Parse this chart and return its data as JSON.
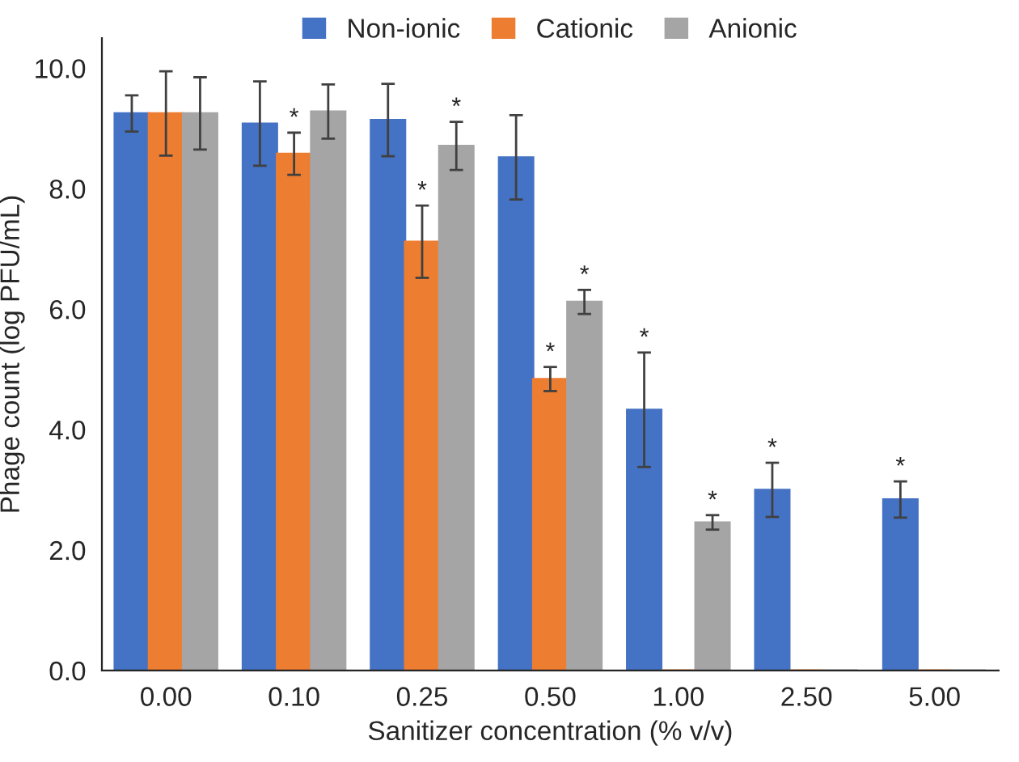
{
  "chart_data": {
    "type": "bar",
    "xlabel": "Sanitizer concentration (% v/v)",
    "ylabel": "Phage count (log PFU/mL)",
    "categories": [
      "0.00",
      "0.10",
      "0.25",
      "0.50",
      "1.00",
      "2.50",
      "5.00"
    ],
    "series": [
      {
        "name": "Non-ionic",
        "color": "#4472c4",
        "values": [
          9.25,
          9.08,
          9.14,
          8.52,
          4.33,
          3.0,
          2.84
        ],
        "errors": [
          0.3,
          0.7,
          0.6,
          0.7,
          0.95,
          0.45,
          0.3
        ],
        "value_labels": [
          null,
          null,
          null,
          null,
          "*",
          "*",
          "*"
        ]
      },
      {
        "name": "Cationic",
        "color": "#ed7d31",
        "values": [
          9.25,
          8.58,
          7.12,
          4.84,
          0,
          0,
          0
        ],
        "errors": [
          0.7,
          0.35,
          0.6,
          0.2,
          null,
          null,
          null
        ],
        "value_labels": [
          null,
          "*",
          "*",
          "*",
          null,
          null,
          null
        ]
      },
      {
        "name": "Anionic",
        "color": "#a5a5a5",
        "values": [
          9.25,
          9.28,
          8.71,
          6.12,
          2.46,
          0,
          0
        ],
        "errors": [
          0.6,
          0.45,
          0.4,
          0.2,
          0.12,
          null,
          null
        ],
        "value_labels": [
          null,
          null,
          "*",
          "*",
          "*",
          null,
          null
        ]
      }
    ],
    "ylim": [
      0,
      10.5
    ],
    "yticks": [
      {
        "value": 0,
        "label": "0.0"
      },
      {
        "value": 2,
        "label": "2.0"
      },
      {
        "value": 4,
        "label": "4.0"
      },
      {
        "value": 6,
        "label": "6.0"
      },
      {
        "value": 8,
        "label": "8.0"
      },
      {
        "value": 10,
        "label": "10.0"
      }
    ],
    "legend": "top",
    "grid": false
  }
}
